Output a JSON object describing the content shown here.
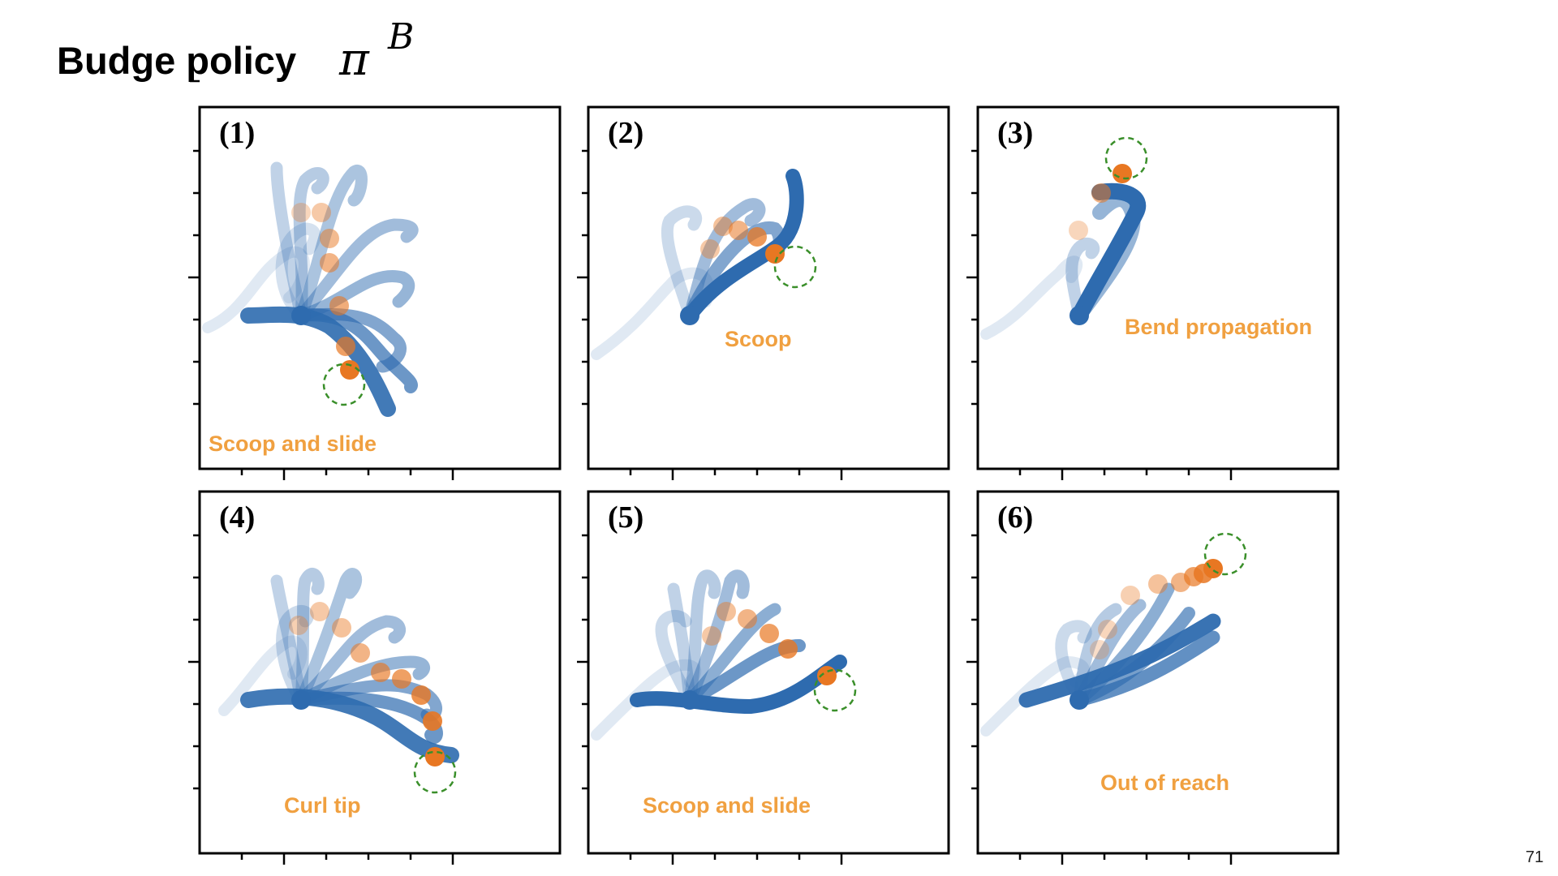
{
  "slide": {
    "title": "Budge policy",
    "policy_symbol": "π",
    "policy_superscript": "B",
    "page_number": "71"
  },
  "colors": {
    "arm_blue": "#2E6BAF",
    "marker_orange": "#E87722",
    "caption_orange": "#F0A040",
    "goal_green": "#3A8F2A"
  },
  "panels": [
    {
      "label": "(1)",
      "caption": "Scoop and slide"
    },
    {
      "label": "(2)",
      "caption": "Scoop"
    },
    {
      "label": "(3)",
      "caption": "Bend propagation"
    },
    {
      "label": "(4)",
      "caption": "Curl tip"
    },
    {
      "label": "(5)",
      "caption": "Scoop and slide"
    },
    {
      "label": "(6)",
      "caption": "Out of reach"
    }
  ]
}
